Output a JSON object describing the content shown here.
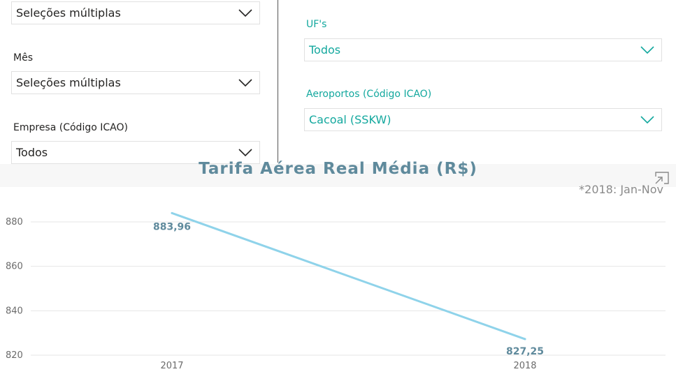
{
  "filters": {
    "top_left": {
      "value": "Seleções múltiplas"
    },
    "mes": {
      "label": "Mês",
      "value": "Seleções múltiplas"
    },
    "empresa": {
      "label": "Empresa (Código ICAO)",
      "value": "Todos"
    },
    "ufs": {
      "label": "UF's",
      "value": "Todos"
    },
    "aeroportos": {
      "label": "Aeroportos (Código ICAO)",
      "value": "Cacoal (SSKW)"
    }
  },
  "chart_header": {
    "title": "Tarifa Aérea Real Média (R$)",
    "subtitle": "*2018: Jan-Nov",
    "focus_icon": "focus-mode-icon"
  },
  "colors": {
    "teal": "#13a89e",
    "line": "#8fd3ea",
    "title": "#5f8a9c"
  },
  "chart_data": {
    "type": "line",
    "title": "Tarifa Aérea Real Média (R$)",
    "categories": [
      "2017",
      "2018"
    ],
    "series": [
      {
        "values": [
          883.96,
          827.25
        ],
        "data_labels": [
          "883,96",
          "827,25"
        ]
      }
    ],
    "yticks": [
      820,
      840,
      860,
      880
    ],
    "ylim": [
      818,
      894
    ],
    "grid": true,
    "legend": "none"
  }
}
